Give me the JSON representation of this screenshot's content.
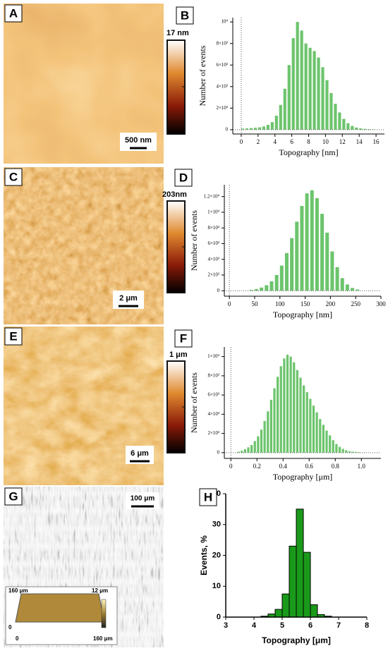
{
  "chart_data": [
    {
      "type": "histogram",
      "label": "B",
      "xlabel": "Topography [nm]",
      "ylabel": "Number of events",
      "color": "#6cc46c",
      "bins": [
        0,
        0.5,
        1,
        1.5,
        2,
        2.5,
        3,
        3.5,
        4,
        4.5,
        5,
        5.5,
        6,
        6.5,
        7,
        7.5,
        8,
        8.5,
        9,
        9.5,
        10,
        10.5,
        11,
        11.5,
        12,
        12.5,
        13,
        13.5,
        14,
        14.5,
        15,
        15.5,
        16
      ],
      "values": [
        100,
        120,
        150,
        180,
        220,
        300,
        450,
        700,
        1300,
        2300,
        3800,
        6000,
        8500,
        10000,
        9200,
        8000,
        7600,
        7300,
        6700,
        5800,
        4600,
        3400,
        2400,
        1600,
        1000,
        600,
        350,
        200,
        120,
        80,
        50,
        30
      ],
      "xlim": [
        -1,
        17
      ],
      "xticks": [
        0,
        2,
        4,
        6,
        8,
        10,
        12,
        14,
        16
      ],
      "ylim": [
        -400,
        10400
      ],
      "yticks": [
        0,
        {
          "value": 2000,
          "label": "2×10³"
        },
        {
          "value": 4000,
          "label": "4×10³"
        },
        {
          "value": 6000,
          "label": "6×10³"
        },
        {
          "value": 8000,
          "label": "8×10³"
        },
        {
          "value": 10000,
          "label": "10⁴"
        }
      ]
    },
    {
      "type": "histogram",
      "label": "D",
      "xlabel": "Topography [nm]",
      "ylabel": "Number of events",
      "color": "#6cc46c",
      "bins": [
        40,
        50,
        60,
        70,
        80,
        90,
        100,
        110,
        120,
        130,
        140,
        150,
        160,
        170,
        180,
        190,
        200,
        210,
        220,
        230,
        240,
        250,
        260
      ],
      "values": [
        100,
        200,
        400,
        700,
        1200,
        2000,
        3200,
        4800,
        6700,
        8800,
        10800,
        12400,
        12800,
        11800,
        9800,
        7400,
        5000,
        3000,
        1600,
        800,
        350,
        150
      ],
      "xlim": [
        -10,
        300
      ],
      "xticks": [
        0,
        50,
        100,
        150,
        200,
        250,
        300
      ],
      "ylim": [
        -700,
        13500
      ],
      "yticks": [
        0,
        {
          "value": 2000,
          "label": "2×10³"
        },
        {
          "value": 4000,
          "label": "4×10³"
        },
        {
          "value": 6000,
          "label": "6×10³"
        },
        {
          "value": 8000,
          "label": "8×10³"
        },
        {
          "value": 10000,
          "label": "1×10⁴"
        },
        {
          "value": 12000,
          "label": "1.2×10⁴"
        }
      ]
    },
    {
      "type": "histogram",
      "label": "F",
      "xlabel": "Topography [μm]",
      "ylabel": "Number of events",
      "color": "#6cc46c",
      "bins": [
        0.05,
        0.075,
        0.1,
        0.125,
        0.15,
        0.175,
        0.2,
        0.225,
        0.25,
        0.275,
        0.3,
        0.325,
        0.35,
        0.375,
        0.4,
        0.425,
        0.45,
        0.475,
        0.5,
        0.525,
        0.55,
        0.575,
        0.6,
        0.625,
        0.65,
        0.675,
        0.7,
        0.725,
        0.75,
        0.775,
        0.8,
        0.825,
        0.85,
        0.875,
        0.9,
        0.925,
        0.95,
        0.975,
        1.0,
        1.025,
        1.05
      ],
      "values": [
        100,
        200,
        350,
        550,
        800,
        1200,
        1700,
        2400,
        3300,
        4300,
        5500,
        6700,
        7900,
        9000,
        9800,
        10200,
        10000,
        9400,
        8600,
        7800,
        7000,
        6300,
        5600,
        4900,
        4200,
        3500,
        2900,
        2300,
        1800,
        1300,
        900,
        600,
        400,
        250,
        150,
        100,
        70,
        50,
        30,
        20
      ],
      "xlim": [
        -0.05,
        1.15
      ],
      "xticks": [
        0,
        0.2,
        0.4,
        0.6,
        0.8,
        {
          "value": 1,
          "label": "1.0"
        }
      ],
      "ylim": [
        -600,
        11000
      ],
      "yticks": [
        0,
        {
          "value": 2000,
          "label": "2×10³"
        },
        {
          "value": 4000,
          "label": "4×10³"
        },
        {
          "value": 6000,
          "label": "6×10³"
        },
        {
          "value": 8000,
          "label": "8×10³"
        },
        {
          "value": 10000,
          "label": "1×10⁴"
        }
      ]
    },
    {
      "type": "histogram",
      "label": "H",
      "xlabel": "Topography [μm]",
      "ylabel": "Events, %",
      "color": "#1a9a1a",
      "bins": [
        4.25,
        4.5,
        4.75,
        5,
        5.25,
        5.5,
        5.75,
        6,
        6.25,
        6.5,
        6.75
      ],
      "values": [
        0.3,
        1,
        2.5,
        7.5,
        23,
        35,
        21,
        4,
        0.8,
        0.3
      ],
      "xlim": [
        3,
        8
      ],
      "xticks": [
        3,
        4,
        5,
        6,
        7,
        8
      ],
      "ylim": [
        0,
        40
      ],
      "yticks": [
        0,
        10,
        20,
        30,
        40
      ]
    }
  ],
  "images": {
    "A": {
      "label": "A",
      "colorbar": "17 nm",
      "scale_bar": "500 nm"
    },
    "C": {
      "label": "C",
      "colorbar": "203nm",
      "scale_bar": "2 μm"
    },
    "E": {
      "label": "E",
      "colorbar": "1 μm",
      "scale_bar": "6 μm"
    },
    "G": {
      "label": "G",
      "scale_bar": "100 μm",
      "inset": {
        "y_top": "160 μm",
        "z_max": "12 μm",
        "y_zero": "0",
        "x_zero": "0",
        "x_end": "160 μm"
      }
    }
  }
}
